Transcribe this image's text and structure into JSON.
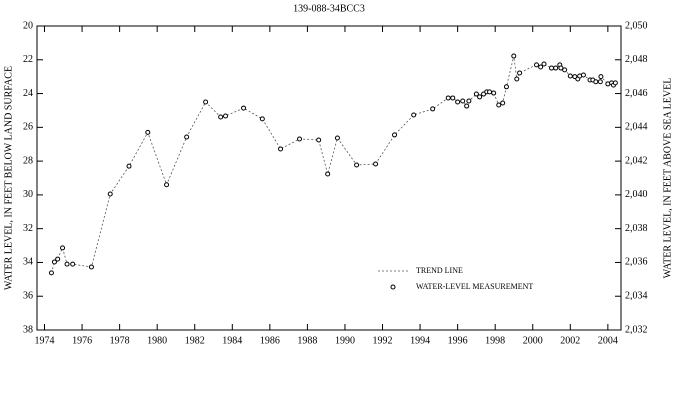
{
  "chart_data": {
    "type": "line",
    "title": "139-088-34BCC3",
    "y_label": "WATER LEVEL, IN FEET BELOW LAND SURFACE",
    "y2_label": "WATER LEVEL, IN FEET ABOVE SEA LEVEL",
    "x": [
      1974.37,
      1974.53,
      1974.7,
      1974.96,
      1975.2,
      1975.5,
      1976.5,
      1977.5,
      1978.5,
      1979.5,
      1980.5,
      1981.57,
      1982.58,
      1983.38,
      1983.64,
      1984.6,
      1985.6,
      1986.57,
      1987.58,
      1988.6,
      1989.08,
      1989.6,
      1990.62,
      1991.63,
      1992.64,
      1993.66,
      1994.67,
      1995.5,
      1995.74,
      1996.0,
      1996.27,
      1996.48,
      1996.6,
      1997.0,
      1997.17,
      1997.38,
      1997.55,
      1997.7,
      1997.92,
      1998.19,
      1998.4,
      1998.6,
      1998.99,
      1999.15,
      1999.3,
      2000.2,
      2000.42,
      2000.6,
      2001.0,
      2001.22,
      2001.44,
      2001.5,
      2001.7,
      2002.0,
      2002.24,
      2002.4,
      2002.5,
      2002.7,
      2003.05,
      2003.2,
      2003.36,
      2003.6,
      2003.63,
      2004.0,
      2004.2,
      2004.3,
      2004.4
    ],
    "series": [
      {
        "name": "TREND LINE",
        "style": "dashed-line",
        "color": "#555555",
        "values": [
          34.62,
          33.97,
          33.8,
          33.14,
          34.1,
          34.1,
          34.27,
          29.95,
          28.3,
          26.3,
          29.4,
          26.57,
          24.5,
          25.39,
          25.33,
          24.86,
          25.5,
          27.28,
          26.69,
          26.75,
          28.76,
          26.63,
          28.23,
          28.17,
          26.45,
          25.27,
          24.91,
          24.26,
          24.26,
          24.5,
          24.44,
          24.74,
          24.44,
          24.03,
          24.2,
          24.03,
          23.9,
          23.9,
          23.97,
          24.68,
          24.56,
          23.6,
          21.78,
          23.14,
          22.78,
          22.3,
          22.43,
          22.25,
          22.49,
          22.49,
          22.3,
          22.49,
          22.6,
          22.96,
          23.0,
          23.14,
          22.96,
          22.9,
          23.2,
          23.2,
          23.3,
          23.3,
          23.0,
          23.43,
          23.37,
          23.5,
          23.37
        ]
      },
      {
        "name": "WATER-LEVEL MEASUREMENT",
        "style": "markers",
        "color": "#000000",
        "values": [
          34.62,
          33.97,
          33.8,
          33.14,
          34.1,
          34.1,
          34.27,
          29.95,
          28.3,
          26.3,
          29.4,
          26.57,
          24.5,
          25.39,
          25.33,
          24.86,
          25.5,
          27.28,
          26.69,
          26.75,
          28.76,
          26.63,
          28.23,
          28.17,
          26.45,
          25.27,
          24.91,
          24.26,
          24.26,
          24.5,
          24.44,
          24.74,
          24.44,
          24.03,
          24.2,
          24.03,
          23.9,
          23.9,
          23.97,
          24.68,
          24.56,
          23.6,
          21.78,
          23.14,
          22.78,
          22.3,
          22.43,
          22.25,
          22.49,
          22.49,
          22.3,
          22.49,
          22.6,
          22.96,
          23.0,
          23.14,
          22.96,
          22.9,
          23.2,
          23.2,
          23.3,
          23.3,
          23.0,
          23.43,
          23.37,
          23.5,
          23.37
        ]
      }
    ],
    "xlim": [
      1973.6,
      2004.7
    ],
    "xticks": [
      1974,
      1976,
      1978,
      1980,
      1982,
      1984,
      1986,
      1988,
      1990,
      1992,
      1994,
      1996,
      1998,
      2000,
      2002,
      2004
    ],
    "ylim": [
      38,
      20
    ],
    "yticks": [
      20,
      22,
      24,
      26,
      28,
      30,
      32,
      34,
      36,
      38
    ],
    "y2lim": [
      2032,
      2050
    ],
    "y2ticks": [
      {
        "value": 2032,
        "label": "2,032"
      },
      {
        "value": 2034,
        "label": "2,034"
      },
      {
        "value": 2036,
        "label": "2,036"
      },
      {
        "value": 2038,
        "label": "2,038"
      },
      {
        "value": 2040,
        "label": "2,040"
      },
      {
        "value": 2042,
        "label": "2,042"
      },
      {
        "value": 2044,
        "label": "2,044"
      },
      {
        "value": 2046,
        "label": "2,046"
      },
      {
        "value": 2048,
        "label": "2,048"
      },
      {
        "value": 2050,
        "label": "2,050"
      }
    ],
    "grid": false
  }
}
